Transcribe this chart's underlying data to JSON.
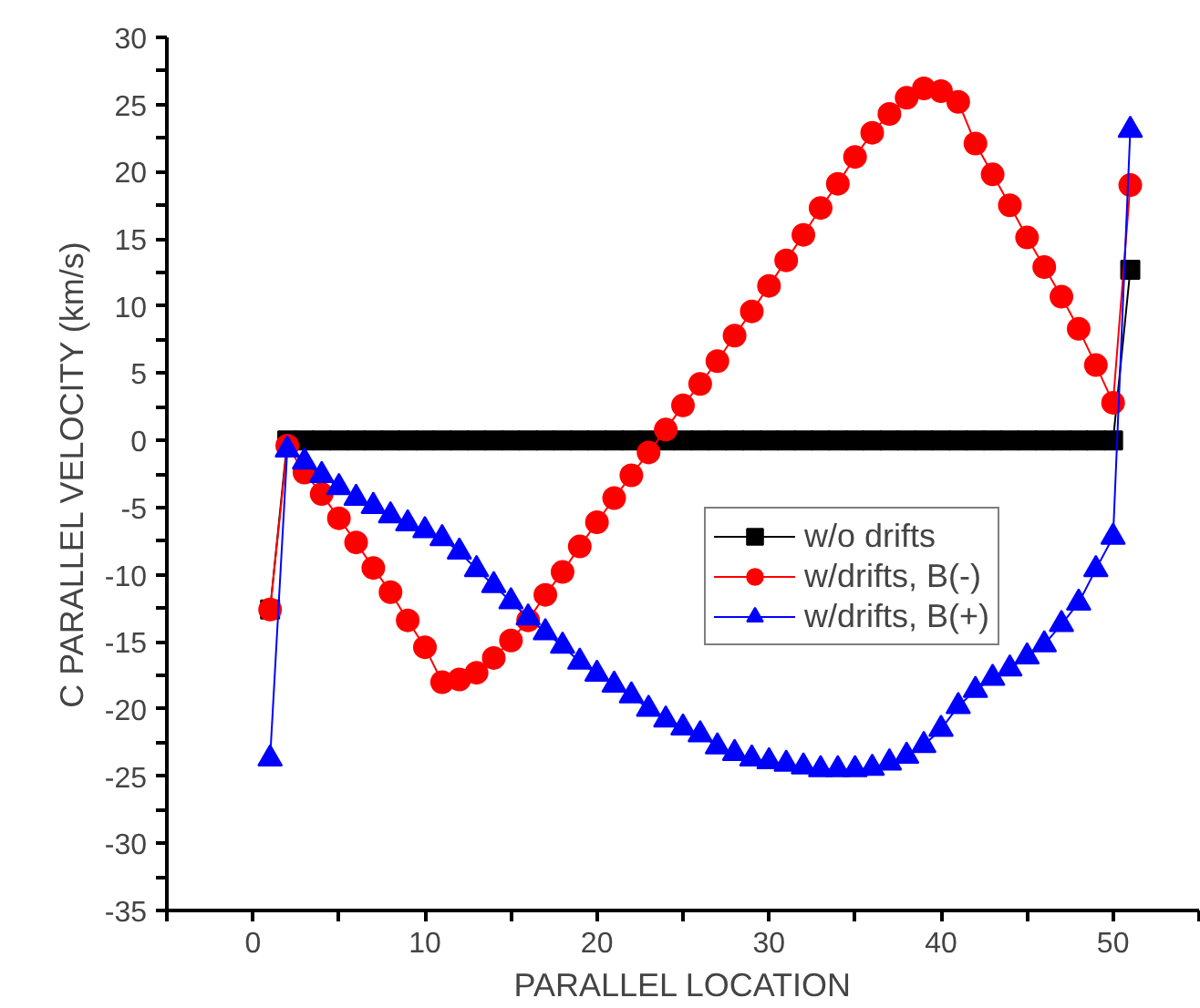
{
  "chart_data": {
    "type": "line",
    "xlabel": "PARALLEL LOCATION",
    "ylabel": "C PARALLEL VELOCITY (km/s)",
    "x": [
      1,
      2,
      3,
      4,
      5,
      6,
      7,
      8,
      9,
      10,
      11,
      12,
      13,
      14,
      15,
      16,
      17,
      18,
      19,
      20,
      21,
      22,
      23,
      24,
      25,
      26,
      27,
      28,
      29,
      30,
      31,
      32,
      33,
      34,
      35,
      36,
      37,
      38,
      39,
      40,
      41,
      42,
      43,
      44,
      45,
      46,
      47,
      48,
      49,
      50,
      51
    ],
    "series": [
      {
        "name": "w/o drifts",
        "color": "#000000",
        "marker": "square",
        "values": [
          -12.6,
          0,
          0,
          0,
          0,
          0,
          0,
          0,
          0,
          0,
          0,
          0,
          0,
          0,
          0,
          0,
          0,
          0,
          0,
          0,
          0,
          0,
          0,
          0,
          0,
          0,
          0,
          0,
          0,
          0,
          0,
          0,
          0,
          0,
          0,
          0,
          0,
          0,
          0,
          0,
          0,
          0,
          0,
          0,
          0,
          0,
          0,
          0,
          0,
          0,
          12.7
        ]
      },
      {
        "name": "w/drifts, B(-)",
        "color": "#ff0000",
        "marker": "circle",
        "values": [
          -12.6,
          -0.4,
          -2.4,
          -4.0,
          -5.8,
          -7.6,
          -9.5,
          -11.3,
          -13.4,
          -15.4,
          -18.0,
          -17.8,
          -17.3,
          -16.2,
          -14.9,
          -13.4,
          -11.5,
          -9.8,
          -7.9,
          -6.1,
          -4.3,
          -2.6,
          -0.9,
          0.8,
          2.6,
          4.2,
          5.9,
          7.8,
          9.6,
          11.5,
          13.4,
          15.3,
          17.3,
          19.1,
          21.1,
          22.9,
          24.3,
          25.5,
          26.2,
          26.0,
          25.2,
          22.1,
          19.8,
          17.5,
          15.1,
          12.9,
          10.7,
          8.3,
          5.6,
          2.8,
          19.0
        ]
      },
      {
        "name": "w/drifts, B(+)",
        "color": "#0000ff",
        "marker": "triangle",
        "values": [
          -23.7,
          -0.7,
          -1.6,
          -2.6,
          -3.5,
          -4.3,
          -4.9,
          -5.6,
          -6.2,
          -6.7,
          -7.3,
          -8.3,
          -9.6,
          -10.8,
          -12.0,
          -13.2,
          -14.3,
          -15.3,
          -16.5,
          -17.4,
          -18.2,
          -19.0,
          -20.0,
          -20.8,
          -21.4,
          -21.9,
          -22.8,
          -23.3,
          -23.7,
          -23.9,
          -24.1,
          -24.3,
          -24.5,
          -24.5,
          -24.5,
          -24.4,
          -24.0,
          -23.5,
          -22.7,
          -21.5,
          -19.8,
          -18.6,
          -17.7,
          -17.0,
          -16.1,
          -15.2,
          -13.7,
          -12.1,
          -9.6,
          -7.2,
          23.1
        ]
      }
    ],
    "xlim": [
      -5,
      55
    ],
    "xticks": [
      {
        "value": -5,
        "label": null
      },
      0,
      {
        "value": 5,
        "label": null
      },
      10,
      {
        "value": 15,
        "label": null
      },
      20,
      {
        "value": 25,
        "label": null
      },
      30,
      {
        "value": 35,
        "label": null
      },
      40,
      {
        "value": 45,
        "label": null
      },
      50,
      {
        "value": 55,
        "label": null
      }
    ],
    "ylim": [
      -35,
      30
    ],
    "yticks": [
      -35,
      {
        "value": -32.5,
        "label": null
      },
      -30,
      {
        "value": -27.5,
        "label": null
      },
      -25,
      {
        "value": -22.5,
        "label": null
      },
      -20,
      {
        "value": -17.5,
        "label": null
      },
      -15,
      {
        "value": -12.5,
        "label": null
      },
      -10,
      {
        "value": -7.5,
        "label": null
      },
      -5,
      {
        "value": -2.5,
        "label": null
      },
      0,
      {
        "value": 2.5,
        "label": null
      },
      5,
      {
        "value": 7.5,
        "label": null
      },
      10,
      {
        "value": 12.5,
        "label": null
      },
      15,
      {
        "value": 17.5,
        "label": null
      },
      20,
      {
        "value": 22.5,
        "label": null
      },
      25,
      {
        "value": 27.5,
        "label": null
      },
      30
    ],
    "legend": "right",
    "grid": false
  }
}
